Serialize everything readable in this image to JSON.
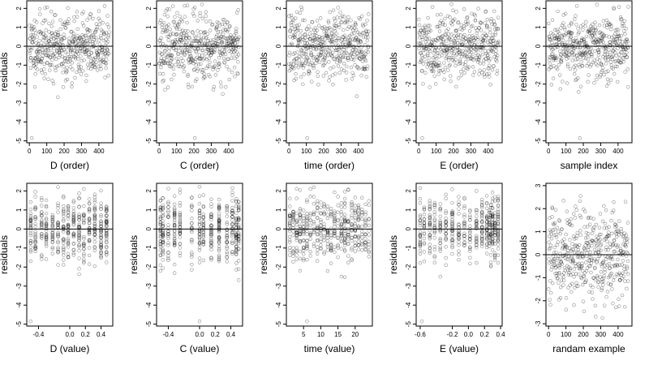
{
  "chart_data": [
    {
      "type": "scatter",
      "xlabel": "D (order)",
      "ylabel": "residuals",
      "xlim": [
        -15,
        480
      ],
      "ylim": [
        -5.1,
        2.4
      ],
      "xticks": [
        0,
        100,
        200,
        300,
        400
      ],
      "yticks": [
        -5,
        -4,
        -3,
        -2,
        -1,
        0,
        1,
        2
      ],
      "ref_line": 0,
      "data_source": {
        "x_kind": "order",
        "n": 460,
        "seed": 11,
        "low_outlier": [
          14,
          -4.85
        ]
      }
    },
    {
      "type": "scatter",
      "xlabel": "C (order)",
      "ylabel": "residuals",
      "xlim": [
        -15,
        480
      ],
      "ylim": [
        -5.1,
        2.4
      ],
      "xticks": [
        0,
        100,
        200,
        300,
        400
      ],
      "yticks": [
        -5,
        -4,
        -3,
        -2,
        -1,
        0,
        1,
        2
      ],
      "ref_line": 0,
      "data_source": {
        "x_kind": "order",
        "n": 460,
        "seed": 23,
        "low_outlier": [
          205,
          -4.85
        ]
      }
    },
    {
      "type": "scatter",
      "xlabel": "time (order)",
      "ylabel": "residuals",
      "xlim": [
        -15,
        480
      ],
      "ylim": [
        -5.1,
        2.4
      ],
      "xticks": [
        0,
        100,
        200,
        300,
        400
      ],
      "yticks": [
        -5,
        -4,
        -3,
        -2,
        -1,
        0,
        1,
        2
      ],
      "ref_line": 0,
      "data_source": {
        "x_kind": "order",
        "n": 460,
        "seed": 37,
        "low_outlier": [
          105,
          -4.85
        ]
      }
    },
    {
      "type": "scatter",
      "xlabel": "E (order)",
      "ylabel": "residuals",
      "xlim": [
        -15,
        480
      ],
      "ylim": [
        -5.1,
        2.4
      ],
      "xticks": [
        0,
        100,
        200,
        300,
        400
      ],
      "yticks": [
        -5,
        -4,
        -3,
        -2,
        -1,
        0,
        1,
        2
      ],
      "ref_line": 0,
      "data_source": {
        "x_kind": "order",
        "n": 460,
        "seed": 41,
        "low_outlier": [
          20,
          -4.85
        ]
      }
    },
    {
      "type": "scatter",
      "xlabel": "sample index",
      "ylabel": "residuals",
      "xlim": [
        -15,
        480
      ],
      "ylim": [
        -5.1,
        2.4
      ],
      "xticks": [
        0,
        100,
        200,
        300,
        400
      ],
      "yticks": [
        -5,
        -4,
        -3,
        -2,
        -1,
        0,
        1,
        2
      ],
      "ref_line": 0,
      "data_source": {
        "x_kind": "order",
        "n": 460,
        "seed": 53,
        "low_outlier": [
          180,
          -4.85
        ]
      }
    },
    {
      "type": "scatter",
      "xlabel": "D (value)",
      "ylabel": "residuals",
      "xlim": [
        -0.55,
        0.55
      ],
      "ylim": [
        -5.1,
        2.4
      ],
      "xticks": [
        -0.4,
        0,
        0.2,
        0.4
      ],
      "xtick_labels": [
        "-0.4",
        "0.0",
        "0.2",
        "0.4"
      ],
      "yticks": [
        -5,
        -4,
        -3,
        -2,
        -1,
        0,
        1,
        2
      ],
      "ref_line": 0,
      "data_source": {
        "x_kind": "value",
        "levels": [
          -0.5,
          -0.44,
          -0.36,
          -0.3,
          -0.22,
          -0.15,
          -0.08,
          -0.02,
          0.05,
          0.12,
          0.18,
          0.25,
          0.32,
          0.4,
          0.47
        ],
        "n": 460,
        "seed": 61,
        "low_outlier": [
          -0.5,
          -4.85
        ]
      }
    },
    {
      "type": "scatter",
      "xlabel": "C (value)",
      "ylabel": "residuals",
      "xlim": [
        -0.55,
        0.55
      ],
      "ylim": [
        -5.1,
        2.4
      ],
      "xticks": [
        -0.4,
        0,
        0.2,
        0.4
      ],
      "xtick_labels": [
        "-0.4",
        "0.0",
        "0.2",
        "0.4"
      ],
      "yticks": [
        -5,
        -4,
        -3,
        -2,
        -1,
        0,
        1,
        2
      ],
      "ref_line": 0,
      "data_source": {
        "x_kind": "value",
        "levels": [
          -0.5,
          -0.47,
          -0.4,
          -0.32,
          -0.25,
          -0.1,
          0.0,
          0.05,
          0.15,
          0.25,
          0.35,
          0.42,
          0.47,
          0.5
        ],
        "n": 460,
        "seed": 71,
        "low_outlier": [
          0.0,
          -4.85
        ]
      }
    },
    {
      "type": "scatter",
      "xlabel": "time (value)",
      "ylabel": "residuals",
      "xlim": [
        0,
        25
      ],
      "ylim": [
        -5.1,
        2.4
      ],
      "xticks": [
        5,
        10,
        15,
        20
      ],
      "yticks": [
        -5,
        -4,
        -3,
        -2,
        -1,
        0,
        1,
        2
      ],
      "ref_line": 0,
      "data_source": {
        "x_kind": "value",
        "levels": [
          1,
          2,
          3,
          4,
          5,
          6,
          7,
          8,
          9,
          10,
          11,
          12,
          13,
          14,
          15,
          16,
          17,
          18,
          19,
          20,
          21,
          22,
          23,
          24
        ],
        "n": 460,
        "seed": 83,
        "low_outlier": [
          6,
          -4.85
        ]
      }
    },
    {
      "type": "scatter",
      "xlabel": "E (value)",
      "ylabel": "residuals",
      "xlim": [
        -0.65,
        0.42
      ],
      "ylim": [
        -5.1,
        2.4
      ],
      "xticks": [
        -0.6,
        -0.2,
        0,
        0.2,
        0.4
      ],
      "xtick_labels": [
        "-0.6",
        "-0.2",
        "0.0",
        "0.2",
        "0.4"
      ],
      "yticks": [
        -5,
        -4,
        -3,
        -2,
        -1,
        0,
        1,
        2
      ],
      "ref_line": 0,
      "data_source": {
        "x_kind": "value",
        "levels": [
          -0.6,
          -0.55,
          -0.48,
          -0.42,
          -0.35,
          -0.28,
          -0.2,
          -0.12,
          -0.05,
          0.02,
          0.1,
          0.17,
          0.23,
          0.26,
          0.28,
          0.3,
          0.33,
          0.37
        ],
        "n": 460,
        "seed": 97,
        "low_outlier": [
          -0.58,
          -4.85
        ]
      }
    },
    {
      "type": "scatter",
      "xlabel": "randam example",
      "ylabel": "residuals",
      "xlim": [
        -15,
        480
      ],
      "ylim": [
        -3.1,
        3.1
      ],
      "xticks": [
        0,
        100,
        200,
        300,
        400
      ],
      "yticks": [
        -3,
        -2,
        -1,
        0,
        1,
        2,
        3
      ],
      "ref_line": 0,
      "data_source": {
        "x_kind": "order",
        "n": 460,
        "seed": 101,
        "distribution": "normal",
        "sd": 1
      }
    }
  ]
}
